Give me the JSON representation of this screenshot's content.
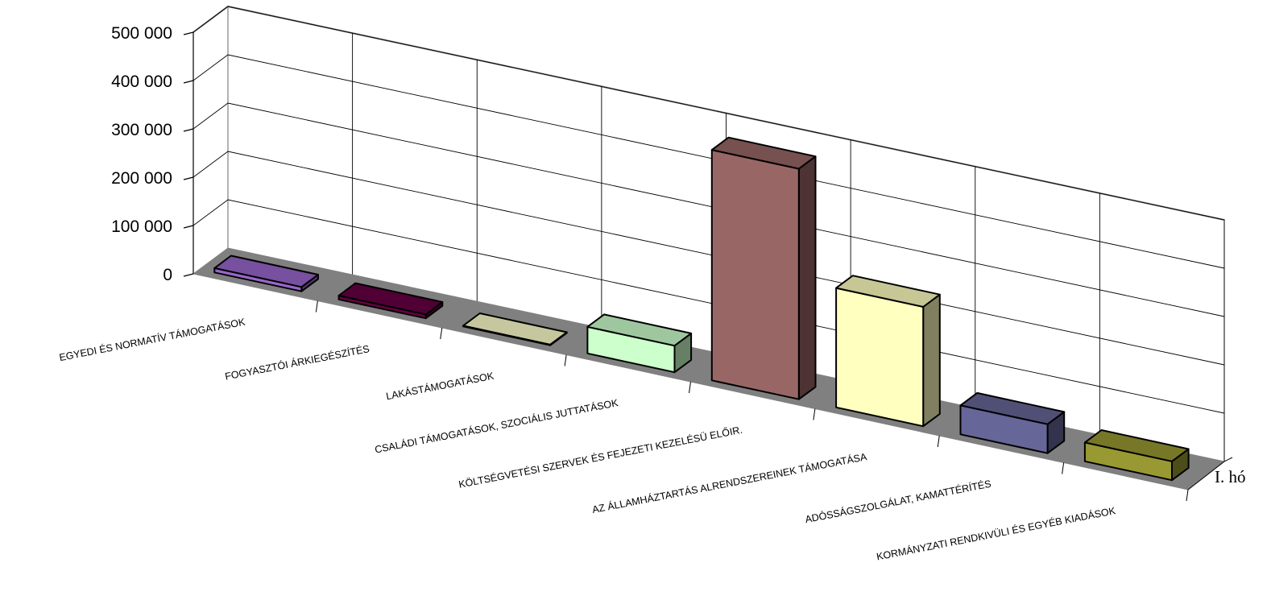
{
  "chart_data": {
    "type": "bar",
    "projection": "3d",
    "categories": [
      "EGYEDI ÉS NORMATÍV TÁMOGATÁSOK",
      "FOGYASZTÓI ÁRKIEGÉSZÍTÉS",
      "LAKÁSTÁMOGATÁSOK",
      "CSALÁDI TÁMOGATÁSOK, SZOCIÁLIS JUTTATÁSOK",
      "KÖLTSÉGVETÉSI SZERVEK ÉS FEJEZETI KEZELÉSÜ ELŐIR.",
      "AZ ÁLLAMHÁZTARTÁS ALRENDSZEREINEK TÁMOGATÁSA",
      "ADÓSSÁGSZOLGÁLAT, KAMATTÉRÍTÉS",
      "KORMÁNYZATI RENDKIVÜLI ÉS EGYÉB KIADÁSOK"
    ],
    "series": [
      {
        "name": "I. hó",
        "values": [
          9000,
          8000,
          1000,
          55000,
          477000,
          247000,
          60000,
          39000
        ]
      }
    ],
    "bar_colors": [
      "#9966cc",
      "#660044",
      "#ffffcc",
      "#ccffcc",
      "#996666",
      "#ffffc0",
      "#666699",
      "#999933"
    ],
    "ylim": [
      0,
      500000
    ],
    "yticks": [
      0,
      100000,
      200000,
      300000,
      400000,
      500000
    ],
    "ytick_labels": [
      "0",
      "100 000",
      "200 000",
      "300 000",
      "400 000",
      "500 000"
    ],
    "grid": true,
    "floor_color": "#808080",
    "title": "",
    "xlabel": "",
    "ylabel": ""
  }
}
